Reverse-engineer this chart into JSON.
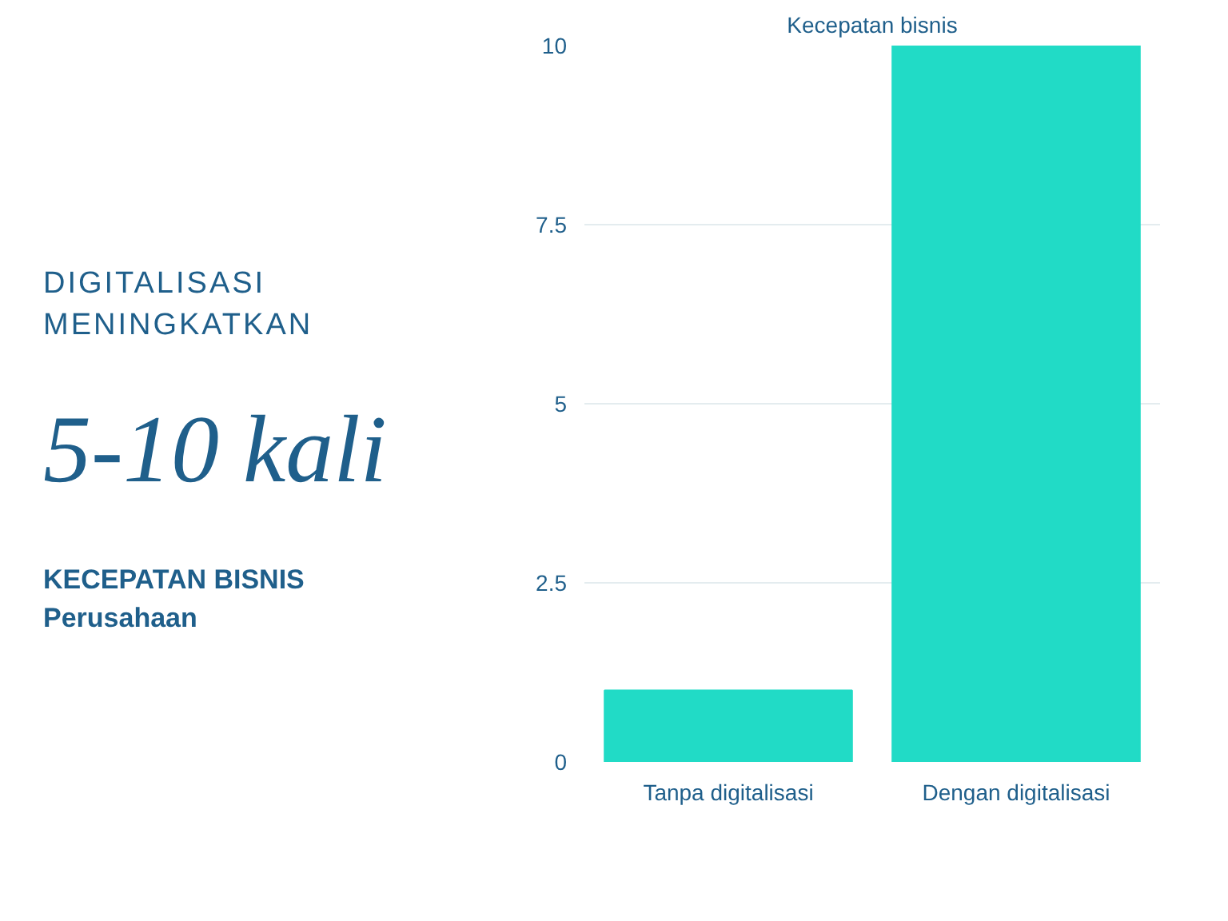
{
  "chart_data": {
    "type": "bar",
    "title": "Kecepatan bisnis",
    "categories": [
      "Tanpa digitalisasi",
      "Dengan digitalisasi"
    ],
    "values": [
      1,
      10
    ],
    "color": "#21dbc6",
    "ylim": [
      0,
      10
    ],
    "yticks": [
      0,
      {
        "value": 2.5,
        "label": "2.5"
      },
      5,
      {
        "value": 7.5,
        "label": "7.5"
      },
      10
    ],
    "grid": "y",
    "annotations": [
      "DIGITALISASI MENINGKATKAN",
      "5-10 kali",
      "KECEPATAN BISNIS",
      "Perusahaan"
    ]
  }
}
